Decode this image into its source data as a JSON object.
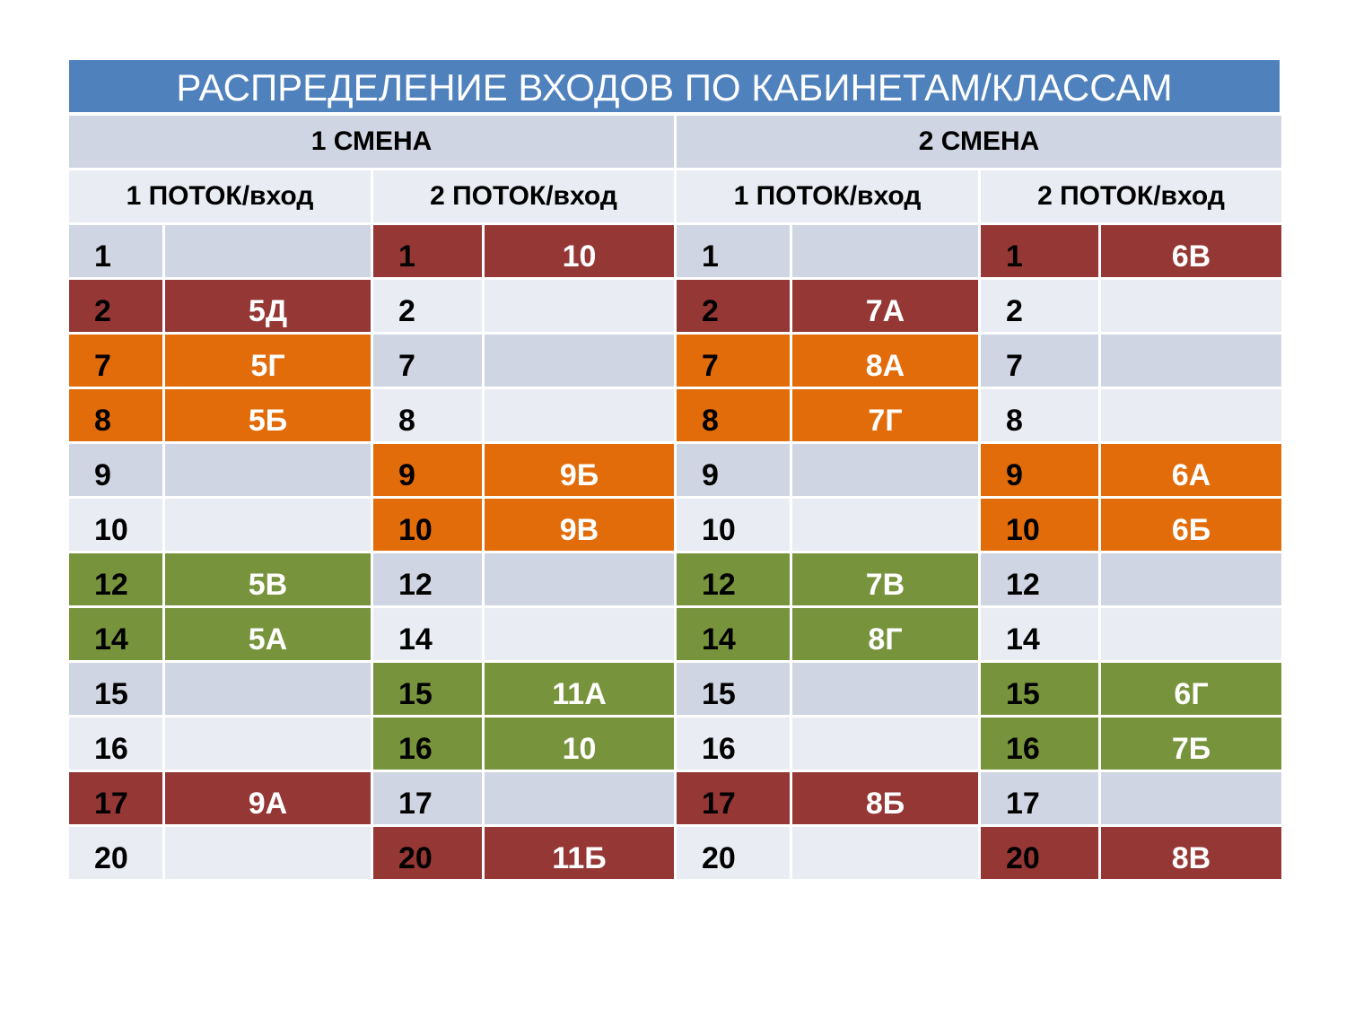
{
  "title": "РАСПРЕДЕЛЕНИЕ ВХОДОВ ПО КАБИНЕТАМ/КЛАССАМ",
  "shifts": [
    "1 СМЕНА",
    "2 СМЕНА"
  ],
  "streams": [
    "1 ПОТОК/вход",
    "2 ПОТОК/вход",
    "1 ПОТОК/вход",
    "2 ПОТОК/вход"
  ],
  "colors": {
    "red": "#953735",
    "orange": "#e36c0a",
    "green": "#77933c",
    "band_dark": "#cfd5e3",
    "band_light": "#e9ecf3",
    "title_bg": "#4f81bd"
  },
  "rows": [
    {
      "room": "1",
      "groups": [
        {
          "cls": "",
          "c": ""
        },
        {
          "cls": "10",
          "c": "red"
        },
        {
          "cls": "",
          "c": ""
        },
        {
          "cls": "6В",
          "c": "red"
        }
      ]
    },
    {
      "room": "2",
      "groups": [
        {
          "cls": "5Д",
          "c": "red"
        },
        {
          "cls": "",
          "c": ""
        },
        {
          "cls": "7А",
          "c": "red"
        },
        {
          "cls": "",
          "c": ""
        }
      ]
    },
    {
      "room": "7",
      "groups": [
        {
          "cls": "5Г",
          "c": "orange"
        },
        {
          "cls": "",
          "c": ""
        },
        {
          "cls": "8А",
          "c": "orange"
        },
        {
          "cls": "",
          "c": ""
        }
      ]
    },
    {
      "room": "8",
      "groups": [
        {
          "cls": "5Б",
          "c": "orange"
        },
        {
          "cls": "",
          "c": ""
        },
        {
          "cls": "7Г",
          "c": "orange"
        },
        {
          "cls": "",
          "c": ""
        }
      ]
    },
    {
      "room": "9",
      "groups": [
        {
          "cls": "",
          "c": ""
        },
        {
          "cls": "9Б",
          "c": "orange"
        },
        {
          "cls": "",
          "c": ""
        },
        {
          "cls": "6А",
          "c": "orange"
        }
      ]
    },
    {
      "room": "10",
      "groups": [
        {
          "cls": "",
          "c": ""
        },
        {
          "cls": "9В",
          "c": "orange"
        },
        {
          "cls": "",
          "c": ""
        },
        {
          "cls": "6Б",
          "c": "orange"
        }
      ]
    },
    {
      "room": "12",
      "groups": [
        {
          "cls": "5В",
          "c": "green"
        },
        {
          "cls": "",
          "c": ""
        },
        {
          "cls": "7В",
          "c": "green"
        },
        {
          "cls": "",
          "c": ""
        }
      ]
    },
    {
      "room": "14",
      "groups": [
        {
          "cls": "5А",
          "c": "green"
        },
        {
          "cls": "",
          "c": ""
        },
        {
          "cls": "8Г",
          "c": "green"
        },
        {
          "cls": "",
          "c": ""
        }
      ]
    },
    {
      "room": "15",
      "groups": [
        {
          "cls": "",
          "c": ""
        },
        {
          "cls": "11А",
          "c": "green"
        },
        {
          "cls": "",
          "c": ""
        },
        {
          "cls": "6Г",
          "c": "green"
        }
      ]
    },
    {
      "room": "16",
      "groups": [
        {
          "cls": "",
          "c": ""
        },
        {
          "cls": "10",
          "c": "green"
        },
        {
          "cls": "",
          "c": ""
        },
        {
          "cls": "7Б",
          "c": "green"
        }
      ]
    },
    {
      "room": "17",
      "groups": [
        {
          "cls": "9А",
          "c": "red"
        },
        {
          "cls": "",
          "c": ""
        },
        {
          "cls": "8Б",
          "c": "red"
        },
        {
          "cls": "",
          "c": ""
        }
      ]
    },
    {
      "room": "20",
      "groups": [
        {
          "cls": "",
          "c": ""
        },
        {
          "cls": "11Б",
          "c": "red"
        },
        {
          "cls": "",
          "c": ""
        },
        {
          "cls": "8В",
          "c": "red"
        }
      ]
    }
  ]
}
